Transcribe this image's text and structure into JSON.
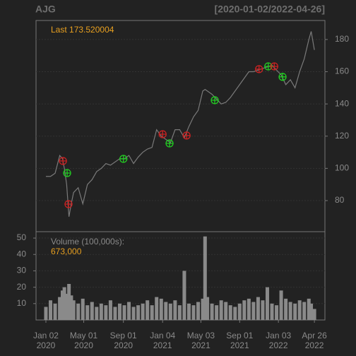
{
  "chart_data": {
    "type": "line",
    "title": "AJG",
    "subtitle": "[2020-01-02/2022-04-26]",
    "last_label": "Last 173.520004",
    "volume_label": "Volume (100,000s):",
    "volume_last_label": "673,000",
    "x": [
      0,
      10,
      20,
      30,
      36,
      40,
      45,
      50,
      55,
      60,
      70,
      80,
      90,
      100,
      110,
      120,
      130,
      140,
      150,
      160,
      170,
      180,
      190,
      200,
      210,
      220,
      230,
      240,
      250,
      260,
      270,
      280,
      290,
      300,
      310,
      320,
      330,
      340,
      345,
      350,
      360,
      370,
      380,
      390,
      400,
      410,
      420,
      430,
      440,
      450,
      460,
      470,
      480,
      490,
      500,
      510,
      520,
      530,
      540,
      550,
      560,
      570,
      575,
      582
    ],
    "series": [
      {
        "name": "AJG",
        "color": "#7a7a7a",
        "values": [
          95,
          95,
          97,
          108,
          106,
          100,
          90,
          70,
          78,
          85,
          88,
          78,
          90,
          93,
          98,
          100,
          103,
          102,
          104,
          106,
          106,
          108,
          103,
          107,
          110,
          112,
          113,
          124,
          120,
          118,
          116,
          124,
          124,
          119,
          126,
          132,
          136,
          148,
          149,
          148,
          146,
          143,
          140,
          141,
          144,
          148,
          152,
          156,
          160,
          160,
          161,
          162,
          163,
          164,
          161,
          158,
          152,
          155,
          150,
          160,
          168,
          180,
          185,
          173.520004
        ]
      },
      {
        "name": "Volume",
        "color": "#8a8a8a",
        "values": [
          8,
          12,
          10,
          14,
          18,
          20,
          16,
          22,
          15,
          12,
          10,
          13,
          9,
          11,
          8,
          10,
          9,
          12,
          8,
          10,
          9,
          11,
          8,
          9,
          10,
          12,
          9,
          14,
          13,
          11,
          10,
          12,
          9,
          30,
          10,
          9,
          11,
          13,
          51,
          14,
          10,
          9,
          12,
          11,
          9,
          8,
          10,
          12,
          13,
          11,
          14,
          12,
          20,
          10,
          9,
          18,
          13,
          11,
          10,
          12,
          11,
          13,
          10,
          6.73
        ]
      }
    ],
    "markers": [
      {
        "x": 37,
        "y": 104.6,
        "color": "#cc2222"
      },
      {
        "x": 46,
        "y": 97.1,
        "color": "#22cc22"
      },
      {
        "x": 49,
        "y": 77.8,
        "color": "#cc2222"
      },
      {
        "x": 168,
        "y": 105.9,
        "color": "#22cc22"
      },
      {
        "x": 253,
        "y": 121.2,
        "color": "#cc2222"
      },
      {
        "x": 268,
        "y": 115.5,
        "color": "#22cc22"
      },
      {
        "x": 305,
        "y": 120.4,
        "color": "#cc2222"
      },
      {
        "x": 366,
        "y": 142.3,
        "color": "#22cc22"
      },
      {
        "x": 462,
        "y": 161.6,
        "color": "#cc2222"
      },
      {
        "x": 482,
        "y": 163.3,
        "color": "#22cc22"
      },
      {
        "x": 495,
        "y": 163.3,
        "color": "#cc2222"
      },
      {
        "x": 513,
        "y": 156.8,
        "color": "#22cc22"
      }
    ],
    "xlim": [
      -21.4,
      604.8
    ],
    "xticks": [
      {
        "value": 0,
        "label": "Jan 02",
        "year": "2020"
      },
      {
        "value": 82,
        "label": "May 01",
        "year": "2020"
      },
      {
        "value": 168,
        "label": "Sep 01",
        "year": "2020"
      },
      {
        "value": 253,
        "label": "Jan 04",
        "year": "2021"
      },
      {
        "value": 336,
        "label": "May 03",
        "year": "2021"
      },
      {
        "value": 420,
        "label": "Sep 01",
        "year": "2021"
      },
      {
        "value": 504,
        "label": "Jan 03",
        "year": "2022"
      },
      {
        "value": 582,
        "label": "Apr 26",
        "year": "2022"
      }
    ],
    "ylim": [
      60.7,
      191.8
    ],
    "yticks": [
      80,
      100,
      120,
      140,
      160,
      180
    ],
    "y2lim": [
      0,
      53.9
    ],
    "y2ticks": [
      10,
      20,
      30,
      40,
      50
    ],
    "grid": true
  }
}
